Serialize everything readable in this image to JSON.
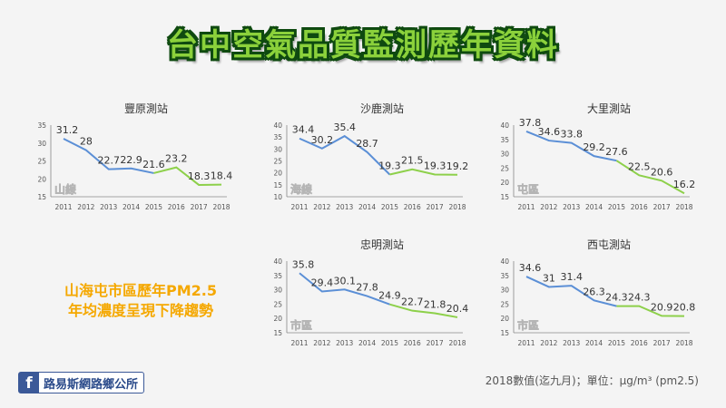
{
  "page": {
    "title": "台中空氣品質監測歷年資料",
    "summary_line1": "山海屯市區歷年PM2.5",
    "summary_line2": "年均濃度呈現下降趨勢",
    "footnote": "2018數值(迄九月)；單位：μg/m³ (pm2.5)",
    "facebook_label": "路易斯網路鄉公所"
  },
  "colors": {
    "past_line": "#5b8fd6",
    "recent_line": "#8dd04a",
    "label": "#333333",
    "axis": "#888888",
    "title_fill": "#8bd13b",
    "summary": "#f5a800"
  },
  "chart_data": [
    {
      "type": "line",
      "title": "豐原測站",
      "badge": "山線",
      "x": [
        "2011",
        "2012",
        "2013",
        "2014",
        "2015",
        "2016",
        "2017",
        "2018"
      ],
      "values": [
        31.2,
        28,
        22.7,
        22.9,
        21.6,
        23.2,
        18.3,
        18.4
      ],
      "yticks": [
        15,
        20,
        25,
        30,
        35
      ],
      "ylim": [
        15,
        35
      ],
      "legend": "none"
    },
    {
      "type": "line",
      "title": "沙鹿測站",
      "badge": "海線",
      "x": [
        "2011",
        "2012",
        "2013",
        "2014",
        "2015",
        "2016",
        "2017",
        "2018"
      ],
      "values": [
        34.4,
        30.2,
        35.4,
        28.7,
        19.3,
        21.5,
        19.3,
        19.2
      ],
      "yticks": [
        10,
        15,
        20,
        25,
        30,
        35,
        40
      ],
      "ylim": [
        10,
        40
      ],
      "legend": "none"
    },
    {
      "type": "line",
      "title": "大里測站",
      "badge": "屯區",
      "x": [
        "2011",
        "2012",
        "2013",
        "2014",
        "2015",
        "2016",
        "2017",
        "2018"
      ],
      "values": [
        37.8,
        34.6,
        33.8,
        29.2,
        27.6,
        22.5,
        20.6,
        16.2
      ],
      "yticks": [
        15,
        20,
        25,
        30,
        35,
        40
      ],
      "ylim": [
        15,
        40
      ],
      "legend": "none"
    },
    {
      "type": "line",
      "title": "忠明測站",
      "badge": "市區",
      "x": [
        "2011",
        "2012",
        "2013",
        "2014",
        "2015",
        "2016",
        "2017",
        "2018"
      ],
      "values": [
        35.8,
        29.4,
        30.1,
        27.8,
        24.9,
        22.7,
        21.8,
        20.4
      ],
      "yticks": [
        15,
        20,
        25,
        30,
        35,
        40
      ],
      "ylim": [
        15,
        40
      ],
      "legend": "none"
    },
    {
      "type": "line",
      "title": "西屯測站",
      "badge": "市區",
      "x": [
        "2011",
        "2012",
        "2013",
        "2014",
        "2015",
        "2016",
        "2017",
        "2018"
      ],
      "values": [
        34.6,
        31,
        31.4,
        26.3,
        24.3,
        24.3,
        20.9,
        20.8
      ],
      "yticks": [
        15,
        20,
        25,
        30,
        35,
        40
      ],
      "ylim": [
        15,
        40
      ],
      "legend": "none"
    }
  ]
}
